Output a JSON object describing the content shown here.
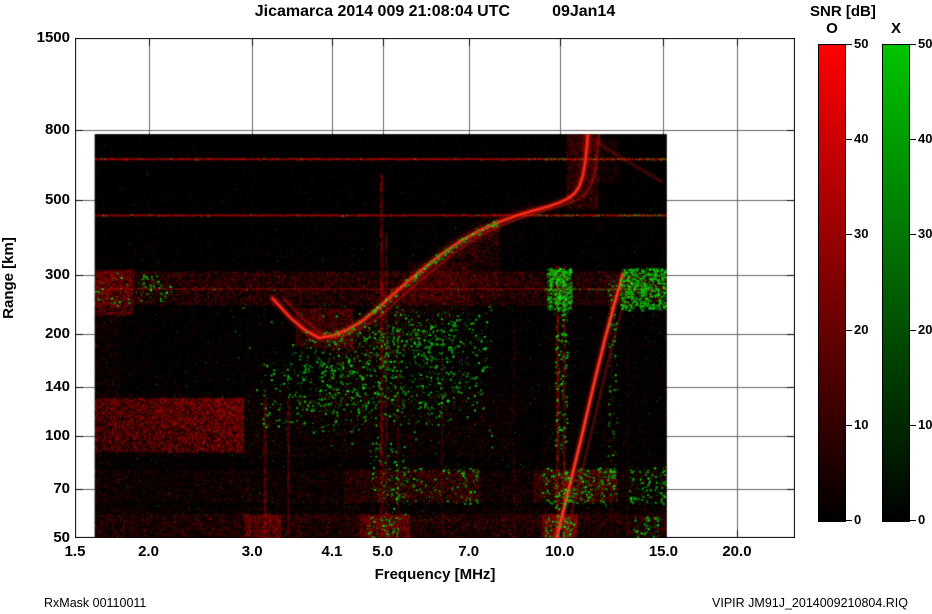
{
  "header": {
    "title": "Jicamarca 2014 009 21:08:04 UTC",
    "date": "09Jan14"
  },
  "footer": {
    "left": "RxMask 00110011",
    "right": "VIPIR  JM91J_2014009210804.RIQ"
  },
  "colorbar": {
    "title": "SNR [dB]",
    "bars": [
      {
        "label": "O",
        "top_color": "#ff0000",
        "bottom_color": "#000000",
        "ticks": [
          "50",
          "40",
          "30",
          "20",
          "10",
          "0"
        ]
      },
      {
        "label": "X",
        "top_color": "#00c400",
        "bottom_color": "#000000",
        "ticks": [
          "50",
          "40",
          "30",
          "20",
          "10",
          "0"
        ]
      }
    ]
  },
  "chart_data": {
    "type": "heatmap",
    "title": "Jicamarca 2014 009 21:08:04 UTC 09Jan14",
    "xlabel": "Frequency [MHz]",
    "ylabel": "Range [km]",
    "x_axis": {
      "scale": "log",
      "min": 1.5,
      "max": 25.1,
      "ticks": [
        "1.5",
        "2.0",
        "3.0",
        "4.1",
        "5.0",
        "7.0",
        "10.0",
        "15.0",
        "20.0"
      ]
    },
    "y_axis": {
      "scale": "log",
      "min": 50,
      "max": 1500,
      "ticks": [
        "1500",
        "800",
        "500",
        "300",
        "200",
        "140",
        "100",
        "70",
        "50"
      ]
    },
    "snr_range_db": [
      0,
      50
    ],
    "modes": [
      "O",
      "X"
    ],
    "features": {
      "extent": {
        "f0": 1.62,
        "f1": 15.2,
        "r0": 50,
        "r1": 780
      },
      "hlines": [
        {
          "r": 660,
          "amp": 1.0,
          "green_from": 8.8
        },
        {
          "r": 450,
          "amp": 0.95,
          "green_from": 8.6
        },
        {
          "r": 272,
          "amp": 0.6,
          "green_from": 9.4
        }
      ],
      "streaks": [
        {
          "f": 3.15,
          "w": 3,
          "s": 0.3,
          "r0": 50,
          "r1": 130
        },
        {
          "f": 3.45,
          "w": 2,
          "s": 0.25,
          "r0": 50,
          "r1": 130
        },
        {
          "f": 4.97,
          "w": 3,
          "s": 0.5,
          "r0": 50,
          "r1": 600
        },
        {
          "f": 5.06,
          "w": 2,
          "s": 0.35,
          "r0": 50,
          "r1": 400
        },
        {
          "f": 5.3,
          "w": 2,
          "s": 0.25,
          "r0": 50,
          "r1": 240
        },
        {
          "f": 6.3,
          "w": 2,
          "s": 0.2,
          "r0": 50,
          "r1": 200
        },
        {
          "f": 8.35,
          "w": 2,
          "s": 0.2,
          "r0": 50,
          "r1": 220
        },
        {
          "f": 9.9,
          "w": 3,
          "s": 0.5,
          "r0": 50,
          "r1": 320
        },
        {
          "f": 10.15,
          "w": 3,
          "s": 0.45,
          "r0": 50,
          "r1": 320
        },
        {
          "f": 12.2,
          "w": 2,
          "s": 0.22,
          "r0": 50,
          "r1": 290
        },
        {
          "f": 13.0,
          "w": 2,
          "s": 0.15,
          "r0": 50,
          "r1": 200
        }
      ],
      "bands": [
        {
          "f0": 1.62,
          "f1": 15.2,
          "r0": 244,
          "r1": 308,
          "n": 15000,
          "a": 0.4
        },
        {
          "f0": 1.62,
          "f1": 15.2,
          "r0": 64,
          "r1": 80,
          "n": 6000,
          "a": 0.3
        },
        {
          "f0": 1.62,
          "f1": 15.2,
          "r0": 49,
          "r1": 59,
          "n": 8000,
          "a": 0.4
        },
        {
          "f0": 1.62,
          "f1": 8.3,
          "r0": 87,
          "r1": 134,
          "n": 6000,
          "a": 0.3
        },
        {
          "f0": 1.62,
          "f1": 15.2,
          "r0": 55,
          "r1": 62,
          "n": 3000,
          "a": 0.22
        }
      ],
      "red_clusters": [
        {
          "f0": 1.62,
          "f1": 2.9,
          "r0": 90,
          "r1": 130,
          "n": 9000,
          "a": 0.5
        },
        {
          "f0": 1.62,
          "f1": 1.88,
          "r0": 228,
          "r1": 312,
          "n": 1600,
          "a": 0.5
        },
        {
          "f0": 1.62,
          "f1": 1.78,
          "r0": 50,
          "r1": 300,
          "n": 900,
          "a": 0.25
        },
        {
          "f0": 3.55,
          "f1": 4.45,
          "r0": 182,
          "r1": 240,
          "n": 2200,
          "a": 0.4
        },
        {
          "f0": 4.3,
          "f1": 7.3,
          "r0": 64,
          "r1": 80,
          "n": 2500,
          "a": 0.35
        },
        {
          "f0": 9.0,
          "f1": 12.5,
          "r0": 64,
          "r1": 80,
          "n": 2500,
          "a": 0.35
        },
        {
          "f0": 2.9,
          "f1": 3.35,
          "r0": 49,
          "r1": 59,
          "n": 1100,
          "a": 0.45
        },
        {
          "f0": 4.55,
          "f1": 5.55,
          "r0": 49,
          "r1": 59,
          "n": 1400,
          "a": 0.45
        },
        {
          "f0": 9.3,
          "f1": 10.7,
          "r0": 49,
          "r1": 59,
          "n": 1400,
          "a": 0.45
        },
        {
          "f0": 10.25,
          "f1": 11.6,
          "r0": 470,
          "r1": 780,
          "n": 2600,
          "a": 0.28
        },
        {
          "f0": 11.2,
          "f1": 12.6,
          "r0": 560,
          "r1": 760,
          "n": 900,
          "a": 0.18
        },
        {
          "f0": 5.5,
          "f1": 7.0,
          "r0": 250,
          "r1": 330,
          "n": 1500,
          "a": 0.22
        }
      ],
      "green_clusters": [
        {
          "f0": 1.9,
          "f1": 2.18,
          "r0": 248,
          "r1": 302,
          "n": 60
        },
        {
          "f0": 9.5,
          "f1": 10.45,
          "r0": 236,
          "r1": 314,
          "n": 480
        },
        {
          "f0": 12.65,
          "f1": 15.15,
          "r0": 236,
          "r1": 314,
          "n": 700
        },
        {
          "f0": 3.1,
          "f1": 4.7,
          "r0": 103,
          "r1": 165,
          "n": 260
        },
        {
          "f0": 3.6,
          "f1": 5.3,
          "r0": 118,
          "r1": 205,
          "n": 340
        },
        {
          "f0": 4.6,
          "f1": 6.7,
          "r0": 108,
          "r1": 215,
          "n": 420
        },
        {
          "f0": 5.2,
          "f1": 7.5,
          "r0": 120,
          "r1": 235,
          "n": 300
        },
        {
          "f0": 2.75,
          "f1": 7.7,
          "r0": 92,
          "r1": 245,
          "n": 180
        },
        {
          "f0": 4.75,
          "f1": 5.45,
          "r0": 58,
          "r1": 96,
          "n": 90
        },
        {
          "f0": 5.0,
          "f1": 7.25,
          "r0": 63,
          "r1": 81,
          "n": 160
        },
        {
          "f0": 9.3,
          "f1": 12.4,
          "r0": 63,
          "r1": 81,
          "n": 280
        },
        {
          "f0": 13.1,
          "f1": 15.1,
          "r0": 63,
          "r1": 81,
          "n": 130
        },
        {
          "f0": 4.7,
          "f1": 5.35,
          "r0": 49,
          "r1": 58,
          "n": 70
        },
        {
          "f0": 9.4,
          "f1": 10.6,
          "r0": 49,
          "r1": 58,
          "n": 90
        },
        {
          "f0": 13.3,
          "f1": 14.7,
          "r0": 49,
          "r1": 58,
          "n": 60
        },
        {
          "f0": 9.78,
          "f1": 10.28,
          "r0": 55,
          "r1": 310,
          "n": 260
        },
        {
          "f0": 12.05,
          "f1": 12.5,
          "r0": 60,
          "r1": 300,
          "n": 90
        },
        {
          "f0": 1.62,
          "f1": 1.85,
          "r0": 240,
          "r1": 305,
          "n": 40
        }
      ],
      "trace": [
        [
          3.25,
          255
        ],
        [
          3.5,
          222
        ],
        [
          3.7,
          205
        ],
        [
          3.9,
          195
        ],
        [
          4.1,
          198
        ],
        [
          4.35,
          206
        ],
        [
          4.6,
          218
        ],
        [
          4.9,
          238
        ],
        [
          5.2,
          262
        ],
        [
          5.5,
          285
        ],
        [
          5.9,
          315
        ],
        [
          6.3,
          345
        ],
        [
          6.8,
          378
        ],
        [
          7.3,
          405
        ],
        [
          7.9,
          430
        ],
        [
          8.5,
          450
        ],
        [
          9.1,
          466
        ],
        [
          9.6,
          478
        ],
        [
          10.0,
          490
        ],
        [
          10.35,
          504
        ],
        [
          10.6,
          522
        ],
        [
          10.8,
          548
        ],
        [
          10.95,
          590
        ],
        [
          11.05,
          650
        ],
        [
          11.12,
          720
        ],
        [
          11.16,
          780
        ]
      ],
      "x_trace_scale": 1.045,
      "critical_frequency_mhz": 11.1,
      "slant": [
        [
          9.88,
          50
        ],
        [
          10.4,
          72
        ],
        [
          10.9,
          100
        ],
        [
          11.4,
          140
        ],
        [
          11.9,
          190
        ],
        [
          12.4,
          248
        ],
        [
          12.8,
          300
        ]
      ],
      "diag": [
        [
          11.6,
          735
        ],
        [
          13.1,
          645
        ],
        [
          14.9,
          565
        ]
      ]
    }
  }
}
